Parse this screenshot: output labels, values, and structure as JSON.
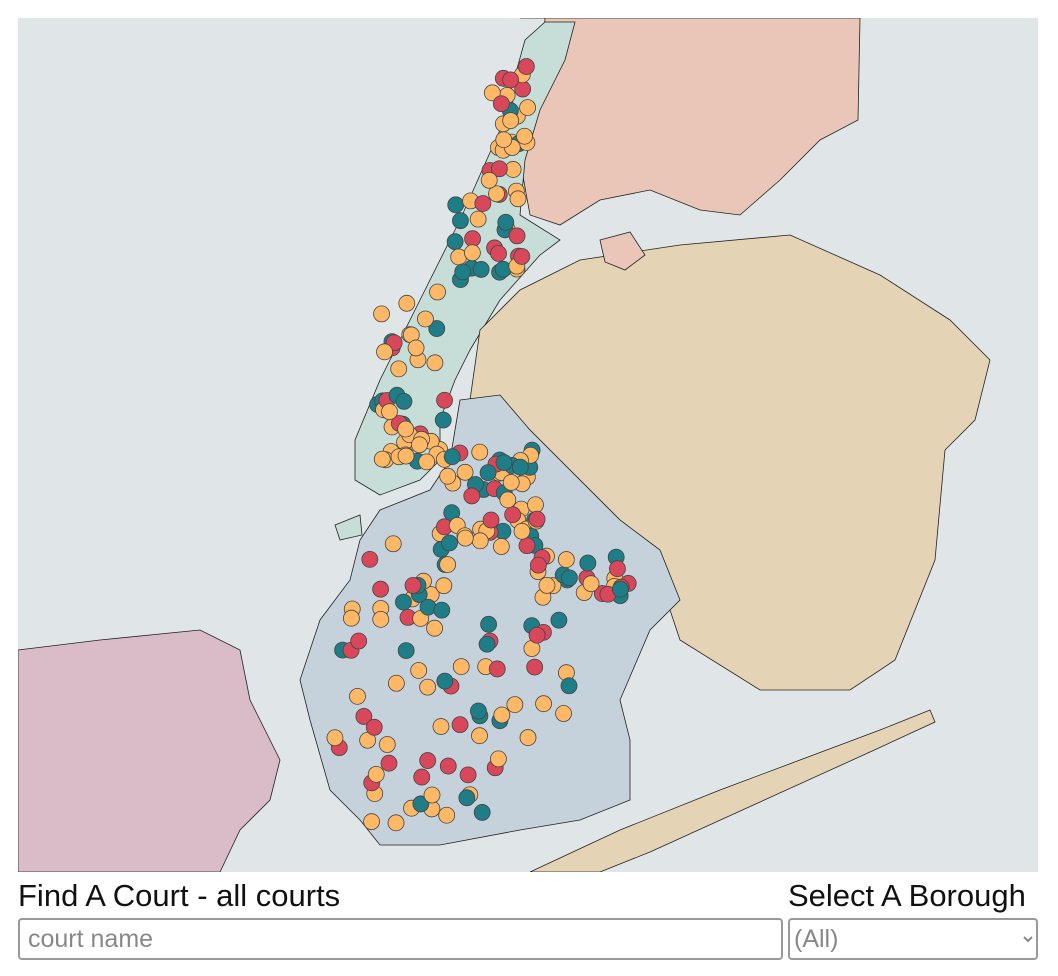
{
  "search": {
    "title": "Find A Court - all courts",
    "placeholder": "court name"
  },
  "borough_select": {
    "label": "Select A Borough",
    "selected": "(All)"
  }
}
